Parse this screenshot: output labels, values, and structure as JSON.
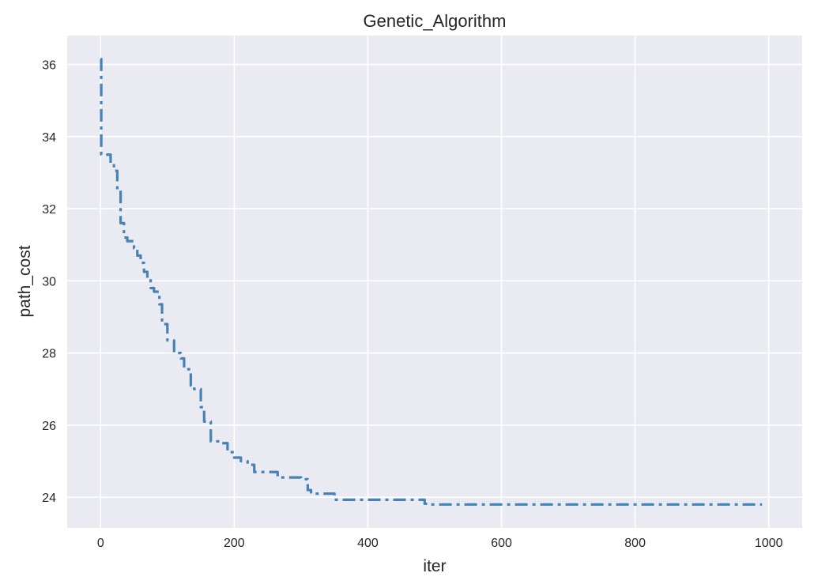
{
  "chart_data": {
    "type": "line",
    "title": "Genetic_Algorithm",
    "xlabel": "iter",
    "ylabel": "path_cost",
    "xlim": [
      -50,
      1050
    ],
    "ylim": [
      23.15,
      36.8
    ],
    "xticks": [
      0,
      200,
      400,
      600,
      800,
      1000
    ],
    "yticks": [
      24,
      26,
      28,
      30,
      32,
      34,
      36
    ],
    "xtick_labels": [
      "0",
      "200",
      "400",
      "600",
      "800",
      "1000"
    ],
    "ytick_labels": [
      "24",
      "26",
      "28",
      "30",
      "32",
      "34",
      "36"
    ],
    "grid": true,
    "legend": "none",
    "series": [
      {
        "color": "#4682b4",
        "line_style": "dash-dot",
        "x": [
          0,
          1,
          1,
          15,
          15,
          20,
          20,
          25,
          25,
          30,
          30,
          35,
          35,
          40,
          40,
          50,
          50,
          55,
          55,
          60,
          60,
          65,
          65,
          70,
          70,
          75,
          75,
          80,
          80,
          88,
          88,
          92,
          92,
          100,
          100,
          110,
          110,
          120,
          120,
          125,
          125,
          135,
          135,
          140,
          140,
          150,
          150,
          155,
          155,
          165,
          165,
          180,
          180,
          190,
          190,
          200,
          200,
          210,
          210,
          220,
          220,
          230,
          230,
          265,
          265,
          300,
          300,
          310,
          310,
          315,
          315,
          350,
          350,
          378,
          378,
          485,
          485,
          492,
          492,
          990
        ],
        "y": [
          36.15,
          36.15,
          33.5,
          33.5,
          33.25,
          33.25,
          33.05,
          33.05,
          32.5,
          32.5,
          31.6,
          31.6,
          31.2,
          31.2,
          31.1,
          31.1,
          30.9,
          30.9,
          30.7,
          30.7,
          30.5,
          30.5,
          30.25,
          30.25,
          30.05,
          30.05,
          29.8,
          29.8,
          29.7,
          29.7,
          29.35,
          29.35,
          28.8,
          28.8,
          28.35,
          28.35,
          28.0,
          28.0,
          27.85,
          27.85,
          27.55,
          27.55,
          27.1,
          27.1,
          27.0,
          27.0,
          26.5,
          26.5,
          26.1,
          26.1,
          25.55,
          25.55,
          25.5,
          25.5,
          25.25,
          25.25,
          25.1,
          25.1,
          25.0,
          25.0,
          24.9,
          24.9,
          24.7,
          24.7,
          24.55,
          24.55,
          24.5,
          24.5,
          24.2,
          24.2,
          24.1,
          24.1,
          23.93,
          23.93,
          23.93,
          23.93,
          23.82,
          23.82,
          23.8,
          23.8
        ]
      }
    ]
  }
}
